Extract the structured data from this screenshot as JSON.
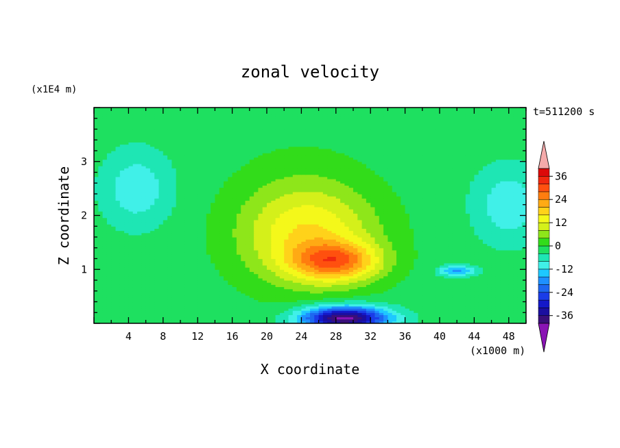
{
  "chart_data": {
    "type": "heatmap",
    "title": "zonal velocity",
    "xlabel": "X coordinate",
    "ylabel": "Z coordinate",
    "x_unit": "(x1000 m)",
    "y_unit": "(x1E4 m)",
    "time_label": "t=511200 s",
    "xlim": [
      0,
      50
    ],
    "ylim": [
      0,
      4
    ],
    "x_ticks": [
      "4",
      "8",
      "12",
      "16",
      "20",
      "24",
      "28",
      "32",
      "36",
      "40",
      "44",
      "48"
    ],
    "y_ticks": [
      "1",
      "2",
      "3"
    ],
    "colorbar": {
      "levels": [
        -40,
        -36,
        -32,
        -28,
        -24,
        -20,
        -16,
        -12,
        -8,
        -4,
        0,
        4,
        8,
        12,
        16,
        20,
        24,
        28,
        32,
        36,
        40
      ],
      "colors": [
        "#3a0f7a",
        "#1b0fa0",
        "#1418c8",
        "#1a3ce8",
        "#1d67f0",
        "#1e90ff",
        "#1ec8ff",
        "#40f0e8",
        "#1ee6b4",
        "#1ee060",
        "#32dc1a",
        "#8ee61a",
        "#d4f01a",
        "#f4f81a",
        "#ffd21a",
        "#ffaa14",
        "#ff7d0f",
        "#ff500f",
        "#f0280f",
        "#dc0a0a"
      ],
      "below_color": "#8a14b4",
      "above_color": "#f4aaaa",
      "tick_labels": [
        "36",
        "24",
        "12",
        "0",
        "-12",
        "-24",
        "-36"
      ]
    },
    "field_features": [
      {
        "kind": "max",
        "x": 28,
        "z": 1.15,
        "value": 22,
        "sx": 5,
        "sz": 0.35
      },
      {
        "kind": "max",
        "x": 25,
        "z": 1.6,
        "value": 14,
        "sx": 8,
        "sz": 0.9
      },
      {
        "kind": "max",
        "x": 24,
        "z": 2.0,
        "value": 5,
        "sx": 8,
        "sz": 1.2
      },
      {
        "kind": "min",
        "x": 29,
        "z": 0.1,
        "value": -40,
        "sx": 5,
        "sz": 0.22
      },
      {
        "kind": "min",
        "x": 5,
        "z": 2.5,
        "value": -9,
        "sx": 4,
        "sz": 0.7
      },
      {
        "kind": "min",
        "x": 48,
        "z": 2.2,
        "value": -9,
        "sx": 4,
        "sz": 0.7
      },
      {
        "kind": "min",
        "x": 42,
        "z": 0.98,
        "value": -16,
        "sx": 2,
        "sz": 0.1
      }
    ]
  }
}
